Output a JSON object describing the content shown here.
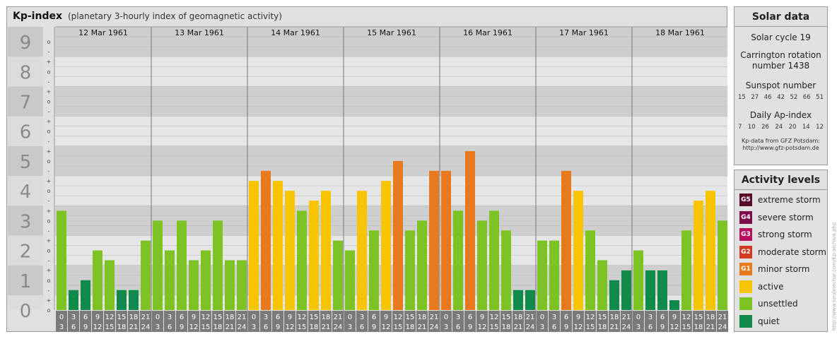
{
  "header": {
    "title": "Kp-index",
    "subtitle": "(planetary 3-hourly index of geomagnetic activity)"
  },
  "chart_data": {
    "type": "bar",
    "y_axis_labels": [
      "0",
      "1",
      "2",
      "3",
      "4",
      "5",
      "6",
      "7",
      "8",
      "9"
    ],
    "ylim": [
      0,
      9
    ],
    "thirds_ticks": [
      "+",
      "o",
      "-"
    ],
    "days": [
      "12 Mar 1961",
      "13 Mar 1961",
      "14 Mar 1961",
      "15 Mar 1961",
      "16 Mar 1961",
      "17 Mar 1961",
      "18 Mar 1961"
    ],
    "interval_labels": [
      [
        "0",
        "3"
      ],
      [
        "3",
        "6"
      ],
      [
        "6",
        "9"
      ],
      [
        "9",
        "12"
      ],
      [
        "12",
        "15"
      ],
      [
        "15",
        "18"
      ],
      [
        "18",
        "21"
      ],
      [
        "21",
        "24"
      ]
    ],
    "values": [
      [
        3.33,
        0.67,
        1.0,
        2.0,
        1.67,
        0.67,
        0.67,
        2.33
      ],
      [
        3.0,
        2.0,
        3.0,
        1.67,
        2.0,
        3.0,
        1.67,
        1.67
      ],
      [
        4.33,
        4.67,
        4.33,
        4.0,
        3.33,
        3.67,
        4.0,
        2.33
      ],
      [
        2.0,
        4.0,
        2.67,
        4.33,
        5.0,
        2.67,
        3.0,
        4.67
      ],
      [
        4.67,
        3.33,
        5.33,
        3.0,
        3.33,
        2.67,
        0.67,
        0.67
      ],
      [
        2.33,
        2.33,
        4.67,
        4.0,
        2.67,
        1.67,
        1.0,
        1.33
      ],
      [
        2.0,
        1.33,
        1.33,
        0.33,
        2.67,
        3.67,
        4.0,
        3.0
      ]
    ],
    "colors": {
      "quiet": "#0f8a4a",
      "unsettled": "#7ec324",
      "active": "#f8c400",
      "g1": "#e77a1c"
    }
  },
  "solar": {
    "title": "Solar data",
    "cycle": "Solar cycle 19",
    "carrington_line1": "Carrington rotation",
    "carrington_line2": "number 1438",
    "sunspot_title": "Sunspot number",
    "sunspot_values": [
      "15",
      "27",
      "46",
      "42",
      "52",
      "66",
      "51"
    ],
    "ap_title": "Daily Ap-index",
    "ap_values": [
      "7",
      "10",
      "26",
      "24",
      "20",
      "14",
      "12"
    ],
    "credit_line1": "Kp-data from GFZ Potsdam:",
    "credit_line2": "http://www.gfz-potsdam.de"
  },
  "levels": {
    "title": "Activity levels",
    "items": [
      {
        "badge": "G5",
        "label": "extreme storm",
        "color": "#5a0b2b"
      },
      {
        "badge": "G4",
        "label": "severe storm",
        "color": "#7a0e4a"
      },
      {
        "badge": "G3",
        "label": "strong storm",
        "color": "#b5105e"
      },
      {
        "badge": "G2",
        "label": "moderate storm",
        "color": "#d23a22"
      },
      {
        "badge": "G1",
        "label": "minor storm",
        "color": "#e77a1c"
      },
      {
        "badge": "",
        "label": "active",
        "color": "#f8c400"
      },
      {
        "badge": "",
        "label": "unsettled",
        "color": "#7ec324"
      },
      {
        "badge": "",
        "label": "quiet",
        "color": "#0f8a4a"
      }
    ]
  },
  "watermark": "http://www.tieuleiechar.com/Kp-archive.php"
}
